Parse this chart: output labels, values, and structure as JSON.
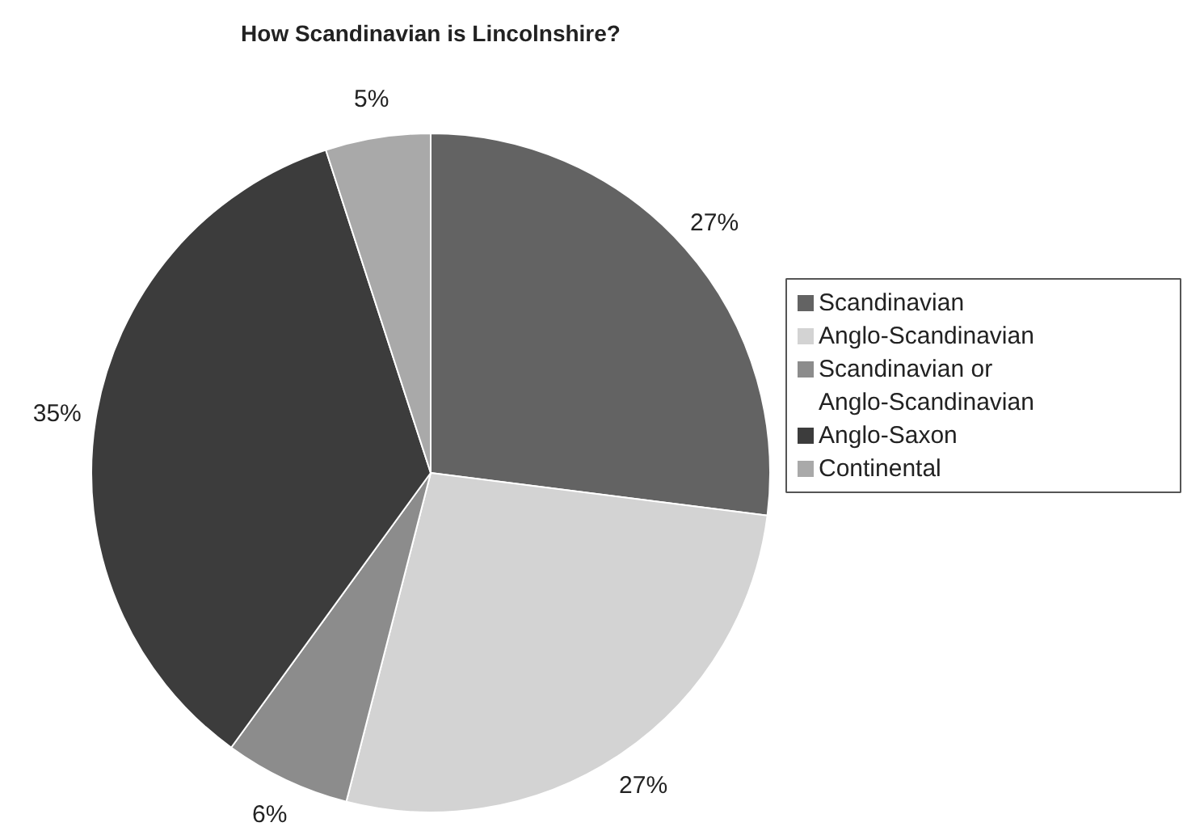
{
  "chart_data": {
    "type": "pie",
    "title": "How Scandinavian is Lincolnshire?",
    "categories": [
      "Scandinavian",
      "Anglo-Scandinavian",
      "Scandinavian or Anglo-Scandinavian",
      "Anglo-Saxon",
      "Continental"
    ],
    "values": [
      27,
      27,
      6,
      35,
      5
    ],
    "colors": [
      "#636363",
      "#d3d3d3",
      "#8c8c8c",
      "#3c3c3c",
      "#a9a9a9"
    ],
    "value_labels": [
      "27%",
      "27%",
      "6%",
      "35%",
      "5%"
    ],
    "legend": "right"
  }
}
